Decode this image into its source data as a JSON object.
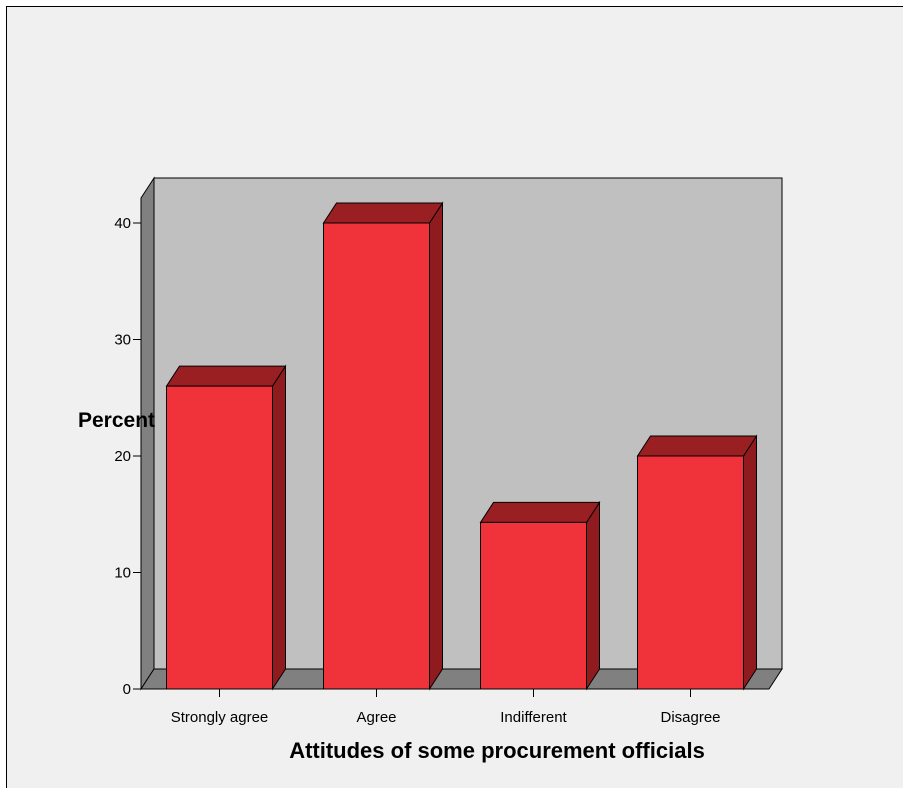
{
  "chart_data": {
    "type": "bar",
    "categories": [
      "Strongly agree",
      "Agree",
      "Indifferent",
      "Disagree"
    ],
    "values": [
      26,
      40,
      14.3,
      20
    ],
    "title": "",
    "xlabel": "Attitudes of some procurement officials",
    "ylabel": "Percent",
    "ylim": [
      0,
      40
    ],
    "yticks": [
      0,
      10,
      20,
      30,
      40
    ],
    "grid": false,
    "legend": "none",
    "colors": {
      "bar_front": "#f0333b",
      "bar_top": "#9a1f23",
      "bar_side": "#8f1b1f",
      "back_wall": "#c0c0c0",
      "side_wall": "#808080",
      "floor": "#808080",
      "background": "#f0f0f0"
    }
  }
}
